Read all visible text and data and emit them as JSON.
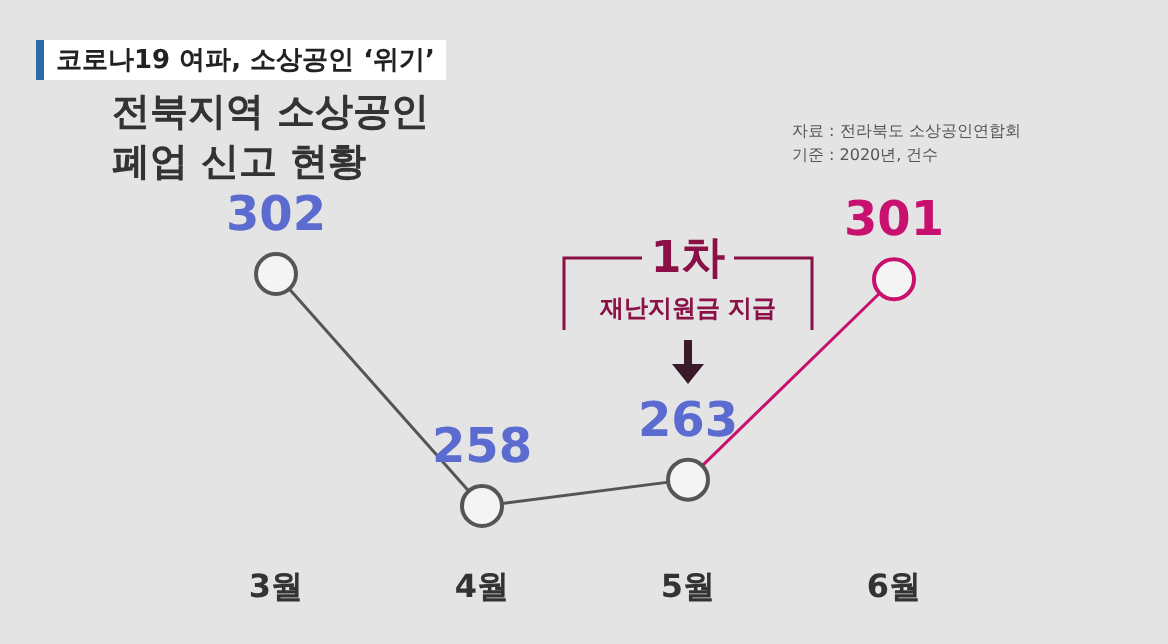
{
  "chart_data": {
    "type": "line",
    "title": "전북지역 소상공인 폐업 신고 현황",
    "categories": [
      "3월",
      "4월",
      "5월",
      "6월"
    ],
    "series": [
      {
        "color": "#555555",
        "colors": [
          "#555555",
          "#555555",
          "#555555",
          "#c8106e"
        ],
        "values": [
          302,
          258,
          263,
          301
        ]
      }
    ],
    "data_labels": true,
    "marker": "circle",
    "grid": false,
    "legend": false,
    "annotations": [
      "코로나19 여파, 소상공인 ‘위기’",
      "자료 : 전라북도 소상공인연합회",
      "기준 : 2020년, 건수",
      "1차",
      "재난지원금 지급"
    ]
  }
}
